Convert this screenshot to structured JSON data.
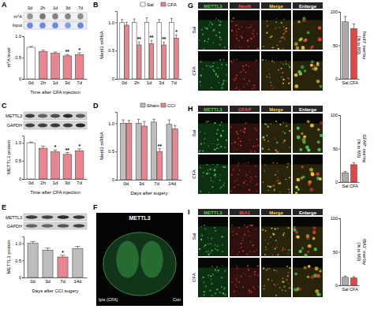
{
  "chart_data": [
    {
      "panel": "A",
      "type": "bar",
      "y_label": "m⁶A level",
      "x_label": "Time after CFA injection",
      "categories": [
        "0d",
        "2h",
        "1d",
        "3d",
        "7d"
      ],
      "values": [
        0.74,
        0.64,
        0.6,
        0.54,
        0.57
      ],
      "errors": [
        0.02,
        0.03,
        0.03,
        0.03,
        0.04
      ],
      "significance": [
        null,
        null,
        null,
        "**",
        "*"
      ],
      "colors": [
        "#ffffff",
        "#e8868f",
        "#e8868f",
        "#e8868f",
        "#e8868f"
      ],
      "ylim": [
        0,
        1
      ],
      "yticks": [
        0,
        0.5,
        {
          "value": 1,
          "label": "1.0"
        }
      ],
      "blot": {
        "lanes": [
          "0d",
          "2h",
          "1d",
          "3d",
          "7d"
        ],
        "rows": [
          "m⁶A",
          "Input"
        ]
      }
    },
    {
      "panel": "B",
      "type": "bar",
      "y_label": "Mettl3 mRNA",
      "categories": [
        "0d",
        "2h",
        "1d",
        "3d",
        "7d"
      ],
      "series": [
        {
          "name": "Sal",
          "color": "#ffffff",
          "values": [
            1,
            1,
            1,
            1,
            1
          ],
          "errors": [
            0.05,
            0.06,
            0.08,
            0.05,
            0.07
          ]
        },
        {
          "name": "CFA",
          "color": "#e8868f",
          "values": [
            0.95,
            0.6,
            0.62,
            0.6,
            0.72
          ],
          "errors": [
            0.05,
            0.05,
            0.06,
            0.05,
            0.06
          ],
          "significance": [
            null,
            "**",
            "**",
            "**",
            "*"
          ]
        }
      ],
      "ylim": [
        0,
        1.2
      ],
      "yticks": [
        0,
        0.5,
        {
          "value": 1,
          "label": "1.0"
        }
      ],
      "legend": "top-right"
    },
    {
      "panel": "C",
      "type": "bar",
      "y_label": "METTL3 protein",
      "x_label": "Time after CFA injection",
      "categories": [
        "0d",
        "2h",
        "1d",
        "3d",
        "7d"
      ],
      "values": [
        1,
        0.85,
        0.75,
        0.68,
        0.78
      ],
      "errors": [
        0.02,
        0.06,
        0.05,
        0.05,
        0.05
      ],
      "significance": [
        null,
        null,
        "*",
        "**",
        "*"
      ],
      "colors": [
        "#ffffff",
        "#e8868f",
        "#e8868f",
        "#e8868f",
        "#e8868f"
      ],
      "ylim": [
        0,
        1.2
      ],
      "yticks": [
        0,
        0.5,
        {
          "value": 1,
          "label": "1.0"
        }
      ],
      "blot": {
        "rows": [
          "METTL3",
          "GAPDH"
        ]
      }
    },
    {
      "panel": "D",
      "type": "bar",
      "y_label": "Mettl3 mRNA",
      "x_label": "Days after sugery",
      "categories": [
        "0d",
        "3d",
        "7d",
        "14d"
      ],
      "series": [
        {
          "name": "Sham",
          "color": "#bdbdbd",
          "values": [
            1,
            1,
            1.02,
            0.98
          ],
          "errors": [
            0.06,
            0.07,
            0.05,
            0.08
          ]
        },
        {
          "name": "CCI",
          "color": "#e8868f",
          "values": [
            1,
            0.95,
            0.5,
            0.9
          ],
          "errors": [
            0.05,
            0.08,
            0.05,
            0.06
          ],
          "significance": [
            null,
            null,
            "**",
            null
          ]
        }
      ],
      "ylim": [
        0,
        1.2
      ],
      "yticks": [
        0,
        0.5,
        {
          "value": 1,
          "label": "1.0"
        }
      ],
      "legend": "top-right"
    },
    {
      "panel": "E",
      "type": "bar",
      "y_label": "METTL3 protein",
      "x_label": "Days after CCI sugery",
      "categories": [
        "0d",
        "3d",
        "7d",
        "14d"
      ],
      "values": [
        1,
        0.8,
        0.6,
        0.85
      ],
      "errors": [
        0.05,
        0.06,
        0.05,
        0.06
      ],
      "significance": [
        null,
        null,
        "*",
        null
      ],
      "colors": [
        "#bdbdbd",
        "#bdbdbd",
        "#e8868f",
        "#bdbdbd"
      ],
      "ylim": [
        0,
        1.2
      ],
      "yticks": [
        0,
        0.5,
        {
          "value": 1,
          "label": "1.0"
        }
      ],
      "blot": {
        "rows": [
          "METTL3",
          "GAPDH"
        ]
      }
    },
    {
      "panel": "G",
      "type": "bar",
      "y_label": "NeuN⁺ overlay (% to M3)",
      "categories": [
        "Sal",
        "CFA"
      ],
      "values": [
        85,
        75
      ],
      "errors": [
        8,
        7
      ],
      "colors": [
        "#aaaaaa",
        "#e04848"
      ],
      "ylim": [
        0,
        100
      ],
      "yticks": [
        0,
        50,
        100
      ],
      "micrographs": {
        "channels": [
          "METTL3",
          "NeuN",
          "Merge",
          "Enlarge"
        ],
        "rows": [
          "Sal",
          "CFA"
        ]
      }
    },
    {
      "panel": "H",
      "type": "bar",
      "y_label": "GFAP⁺ overlay (% to M3)",
      "categories": [
        "Sal",
        "CFA"
      ],
      "values": [
        14,
        26
      ],
      "errors": [
        2,
        3
      ],
      "colors": [
        "#aaaaaa",
        "#e04848"
      ],
      "ylim": [
        0,
        100
      ],
      "yticks": [
        0,
        50,
        100
      ],
      "micrographs": {
        "channels": [
          "METTL3",
          "GFAP",
          "Merge",
          "Enlarge"
        ],
        "rows": [
          "Sal",
          "CFA"
        ]
      }
    },
    {
      "panel": "I",
      "type": "bar",
      "y_label": "IBA1⁺ overlay (% to M3)",
      "categories": [
        "Sal",
        "CFA"
      ],
      "values": [
        12,
        11
      ],
      "errors": [
        2,
        2
      ],
      "colors": [
        "#aaaaaa",
        "#e04848"
      ],
      "ylim": [
        0,
        100
      ],
      "yticks": [
        0,
        50,
        100
      ],
      "micrographs": {
        "channels": [
          "METTL3",
          "IBA1",
          "Merge",
          "Enlarge"
        ],
        "rows": [
          "Sal",
          "CFA"
        ]
      }
    }
  ],
  "image_panels": [
    {
      "panel": "F",
      "title": "METTL3",
      "labels": [
        "Ipis (CFA)",
        "Con"
      ]
    }
  ]
}
